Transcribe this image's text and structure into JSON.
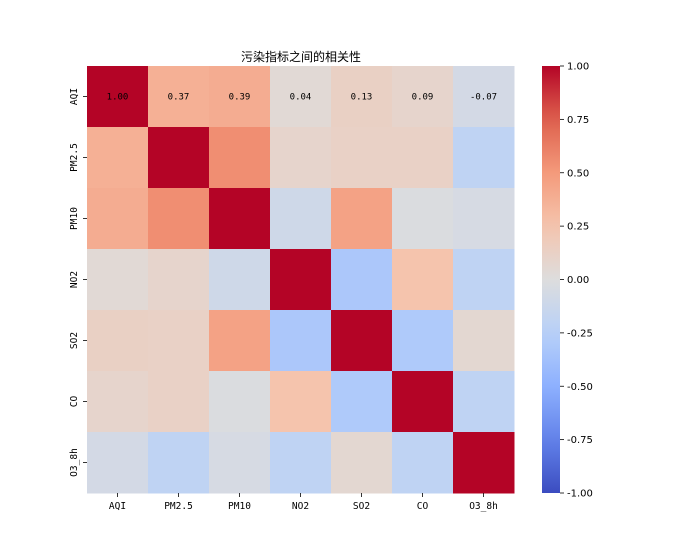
{
  "chart_data": {
    "type": "heatmap",
    "title": "污染指标之间的相关性",
    "variables": [
      "AQI",
      "PM2.5",
      "PM10",
      "NO2",
      "SO2",
      "CO",
      "O3_8h"
    ],
    "matrix": [
      [
        1.0,
        0.37,
        0.39,
        0.04,
        0.13,
        0.09,
        -0.07
      ],
      [
        0.37,
        1.0,
        0.55,
        0.09,
        0.12,
        0.12,
        -0.2
      ],
      [
        0.39,
        0.55,
        1.0,
        -0.1,
        0.45,
        -0.02,
        -0.05
      ],
      [
        0.04,
        0.09,
        -0.1,
        1.0,
        -0.32,
        0.25,
        -0.2
      ],
      [
        0.13,
        0.12,
        0.45,
        -0.32,
        1.0,
        -0.3,
        0.06
      ],
      [
        0.09,
        0.12,
        -0.02,
        0.25,
        -0.3,
        1.0,
        -0.2
      ],
      [
        -0.07,
        -0.2,
        -0.05,
        -0.2,
        0.06,
        -0.2,
        1.0
      ]
    ],
    "annotated_row_labels": [
      "1.00",
      "0.37",
      "0.39",
      "0.04",
      "0.13",
      "0.09",
      "-0.07"
    ],
    "colormap": "coolwarm",
    "vmin": -1.0,
    "vmax": 1.0,
    "colorbar_ticks": [
      "1.00",
      "0.75",
      "0.50",
      "0.25",
      "0.00",
      "-0.25",
      "-0.50",
      "-0.75",
      "-1.00"
    ],
    "colorbar_tick_values": [
      1.0,
      0.75,
      0.5,
      0.25,
      0.0,
      -0.25,
      -0.5,
      -0.75,
      -1.0
    ],
    "legend": "right"
  }
}
